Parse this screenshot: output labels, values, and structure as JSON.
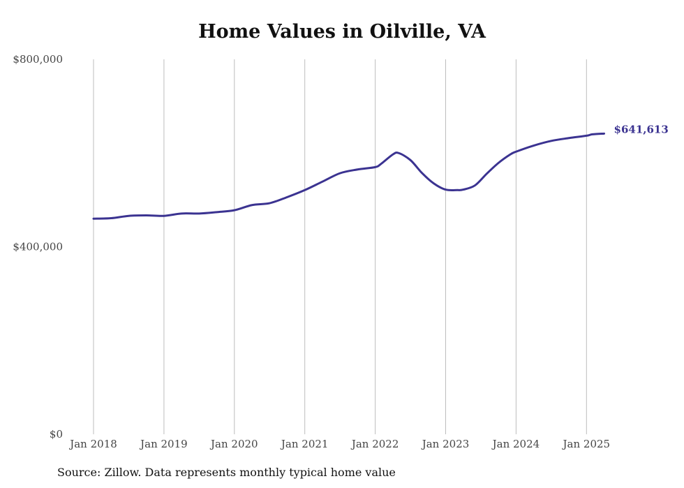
{
  "chart_data": {
    "type": "line",
    "title": "Home Values in Oilville, VA",
    "xlabel": "",
    "ylabel": "",
    "x_ticks": [
      "Jan 2018",
      "Jan 2019",
      "Jan 2020",
      "Jan 2021",
      "Jan 2022",
      "Jan 2023",
      "Jan 2024",
      "Jan 2025"
    ],
    "y_ticks": [
      "$0",
      "$400,000",
      "$800,000"
    ],
    "ylim": [
      0,
      800000
    ],
    "xlim": [
      "2018-01",
      "2025-04"
    ],
    "grid": "vertical",
    "line_color": "#3b3391",
    "end_label": "$641,613",
    "series": [
      {
        "x": [
          "2018-01",
          "2018-04",
          "2018-07",
          "2018-10",
          "2019-01",
          "2019-04",
          "2019-07",
          "2019-10",
          "2020-01",
          "2020-04",
          "2020-07",
          "2020-10",
          "2021-01",
          "2021-04",
          "2021-07",
          "2021-10",
          "2022-01",
          "2022-02",
          "2022-04",
          "2022-05",
          "2022-07",
          "2022-09",
          "2022-11",
          "2023-01",
          "2023-03",
          "2023-04",
          "2023-06",
          "2023-08",
          "2023-10",
          "2023-12",
          "2024-01",
          "2024-04",
          "2024-07",
          "2024-10",
          "2025-01",
          "2025-02",
          "2025-04"
        ],
        "values": [
          460000,
          461000,
          466000,
          467000,
          466000,
          471000,
          471000,
          474000,
          478000,
          489000,
          493000,
          506000,
          521000,
          539000,
          557000,
          565000,
          570000,
          577000,
          597000,
          600000,
          585000,
          557000,
          535000,
          522000,
          521000,
          522000,
          531000,
          556000,
          579000,
          597000,
          603000,
          616000,
          626000,
          632000,
          637000,
          640000,
          641613
        ]
      }
    ]
  },
  "source": "Source: Zillow. Data represents monthly typical home value"
}
